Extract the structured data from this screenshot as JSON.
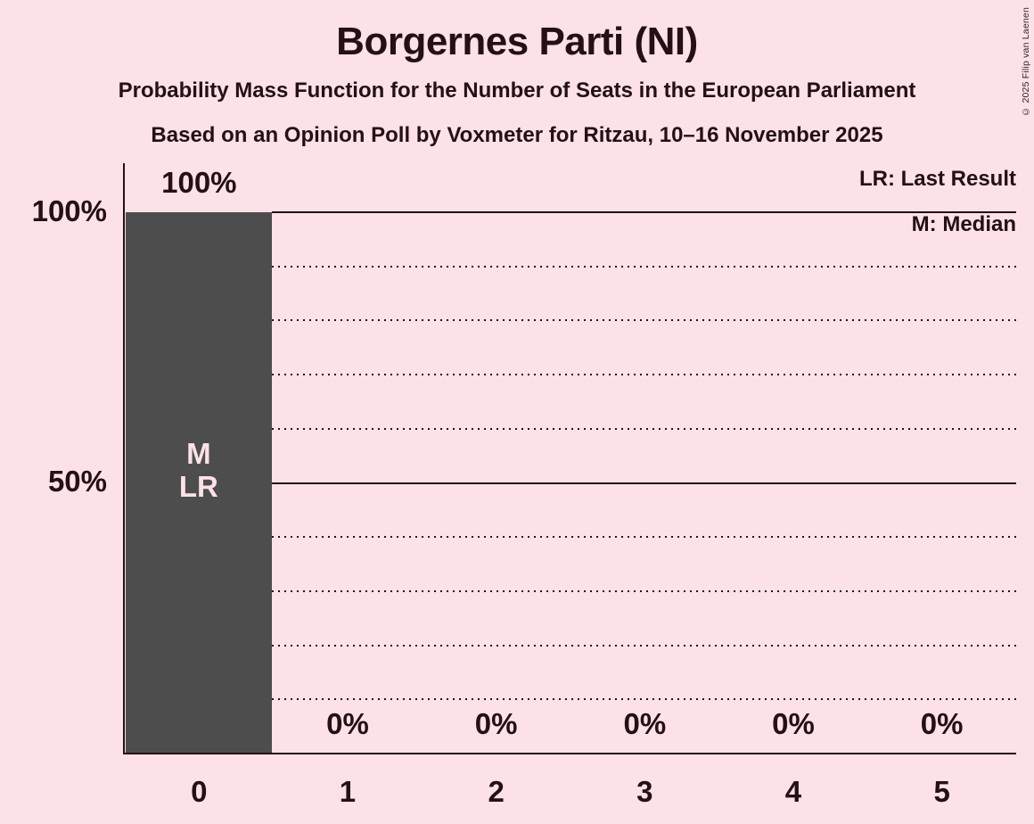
{
  "page": {
    "background": "#FCE2E6",
    "text_color": "#241016",
    "copyright": "© 2025 Filip van Laenen"
  },
  "header": {
    "title": "Borgernes Parti (NI)",
    "subtitle": "Probability Mass Function for the Number of Seats in the European Parliament",
    "poll_line": "Based on an Opinion Poll by Voxmeter for Ritzau, 10–16 November 2025"
  },
  "legend": {
    "last_result": "LR: Last Result",
    "median": "M: Median"
  },
  "chart_data": {
    "type": "bar",
    "title": "Borgernes Parti (NI)",
    "xlabel": "",
    "ylabel": "",
    "categories": [
      "0",
      "1",
      "2",
      "3",
      "4",
      "5"
    ],
    "values": [
      100,
      0,
      0,
      0,
      0,
      0
    ],
    "bar_value_labels": [
      "100%",
      "0%",
      "0%",
      "0%",
      "0%",
      "0%"
    ],
    "bar_annotations": {
      "0": [
        "M",
        "LR"
      ]
    },
    "median_seats": 0,
    "last_result_seats": 0,
    "ylim": [
      0,
      100
    ],
    "y_axis_ticks": [
      {
        "value": 100,
        "label": "100%"
      },
      {
        "value": 50,
        "label": "50%"
      }
    ],
    "solid_gridlines": [
      100,
      50
    ],
    "dotted_gridlines": [
      90,
      80,
      70,
      60,
      40,
      30,
      20,
      10
    ],
    "grid": true,
    "legend_position": "top-right",
    "bar_color": "#4D4D4D",
    "bar_label_color": "#FCE2E6",
    "background_color": "#FCE2E6"
  }
}
